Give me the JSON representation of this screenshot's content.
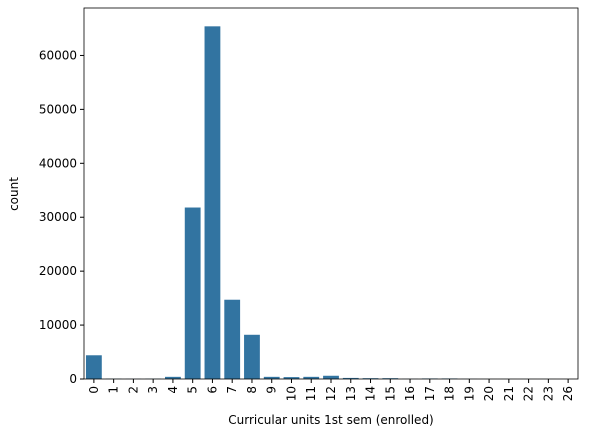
{
  "chart_data": {
    "type": "bar",
    "x_label": "Curricular units 1st sem (enrolled)",
    "y_label": "count",
    "categories": [
      "0",
      "1",
      "2",
      "3",
      "4",
      "5",
      "6",
      "7",
      "8",
      "9",
      "10",
      "11",
      "12",
      "13",
      "14",
      "15",
      "16",
      "17",
      "18",
      "19",
      "20",
      "21",
      "22",
      "23",
      "26"
    ],
    "values": [
      4400,
      50,
      30,
      50,
      400,
      31800,
      65400,
      14700,
      8200,
      400,
      350,
      400,
      600,
      200,
      150,
      150,
      30,
      100,
      100,
      20,
      10,
      10,
      10,
      10,
      5
    ],
    "color": "#3274a1",
    "ylim": [
      0,
      68800
    ],
    "yticks": [
      0,
      10000,
      20000,
      30000,
      40000,
      50000,
      60000
    ]
  }
}
